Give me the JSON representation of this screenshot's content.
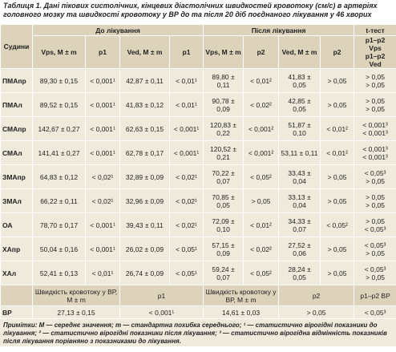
{
  "title": "Таблиця 1. Дані пікових систолічних, кінцевих діастолічних швидкостей кровотоку (см/с) в артеріях головного мозку та швидкості кровотоку у ВР до та після 20 діб поєднаного лікування у 46 хворих",
  "table": {
    "header_top": [
      "Судини",
      "До лікування",
      "Після лікування",
      "t-тест"
    ],
    "header_sub": [
      "Vps, M ± m",
      "p1",
      "Ved, M ± m",
      "p1",
      "Vps, M ± m",
      "p2",
      "Ved, M ± m",
      "p2",
      [
        "p1–p2",
        "Vps",
        "p1–p2",
        "Ved"
      ]
    ],
    "rows": [
      [
        "ПМАпр",
        "89,30 ± 0,15",
        "< 0,001¹",
        "42,87 ± 0,11",
        "< 0,01¹",
        "89,80 ± 0,11",
        "< 0,01²",
        "41,83 ± 0,05",
        "> 0,05",
        [
          "> 0,05",
          "> 0,05"
        ]
      ],
      [
        "ПМАл",
        "89,52 ± 0,15",
        "< 0,001¹",
        "41,83 ± 0,12",
        "< 0,01¹",
        "90,78 ± 0,09",
        "< 0,02²",
        "42,85 ± 0,05",
        "> 0,05",
        [
          "> 0,05",
          "> 0,05"
        ]
      ],
      [
        "СМАпр",
        "142,67 ± 0,27",
        "< 0,001¹",
        "62,63 ± 0,15",
        "< 0,001¹",
        "120,83 ± 0,22",
        "< 0,001²",
        "51,87 ± 0,10",
        "< 0,01²",
        [
          "< 0,001³",
          "< 0,001³"
        ]
      ],
      [
        "СМАл",
        "141,41 ± 0,27",
        "< 0,001¹",
        "62,78 ± 0,17",
        "< 0,001¹",
        "120,52 ± 0,21",
        "< 0,001²",
        "53,11 ± 0,11",
        "< 0,01²",
        [
          "< 0,001³",
          "< 0,001³"
        ]
      ],
      [
        "ЗМАпр",
        "64,83 ± 0,12",
        "< 0,02¹",
        "32,89 ± 0,09",
        "< 0,02¹",
        "70,22 ± 0,07",
        "< 0,05²",
        "33,43 ± 0,04",
        "> 0,05",
        [
          "< 0,05³",
          "> 0,05"
        ]
      ],
      [
        "ЗМАл",
        "66,22 ± 0,11",
        "< 0,02¹",
        "32,96 ± 0,09",
        "< 0,02¹",
        "70,85 ± 0,05",
        "> 0,05",
        "33,13 ± 0,04",
        "> 0,05",
        [
          "> 0,05",
          "> 0,05"
        ]
      ],
      [
        "ОА",
        "78,70 ± 0,17",
        "< 0,001¹",
        "39,43 ± 0,11",
        "< 0,02¹",
        "72,09 ± 0,10",
        "< 0,01²",
        "34,33 ± 0,07",
        "< 0,05²",
        [
          "> 0,05",
          "< 0,05³"
        ]
      ],
      [
        "ХАпр",
        "50,04 ± 0,16",
        "< 0,001¹",
        "26,02 ± 0,09",
        "< 0,05¹",
        "57,15 ± 0,09",
        "< 0,02²",
        "27,52 ± 0,06",
        "> 0,05",
        [
          "< 0,05³",
          "> 0,05"
        ]
      ],
      [
        "ХАл",
        "52,41 ± 0,13",
        "< 0,01¹",
        "26,74 ± 0,09",
        "< 0,05¹",
        "59,24 ± 0,07",
        "< 0,05²",
        "28,24 ± 0,05",
        "> 0,05",
        [
          "< 0,05³",
          "> 0,05"
        ]
      ]
    ],
    "vr_header": [
      "Швидкість кровотоку у ВР, M ± m",
      "p1",
      "Швидкість крово­току у ВР, M ± m",
      "p2",
      "p1–p2 ВР"
    ],
    "vr_row": [
      "ВР",
      "27,13 ± 0,15",
      "< 0,001¹",
      "14,61 ± 0,03",
      "> 0,05",
      "< 0,05³"
    ]
  },
  "notes": "Примітки: M — середнє значення; m — стандартна похибка середнього; ¹ — статистично вірогідні показники до лікування; ² — статистично вірогідні показники після лікування; ³ — статистично вірогідна відмінність показників після лікування порівняно з показниками до лікування."
}
